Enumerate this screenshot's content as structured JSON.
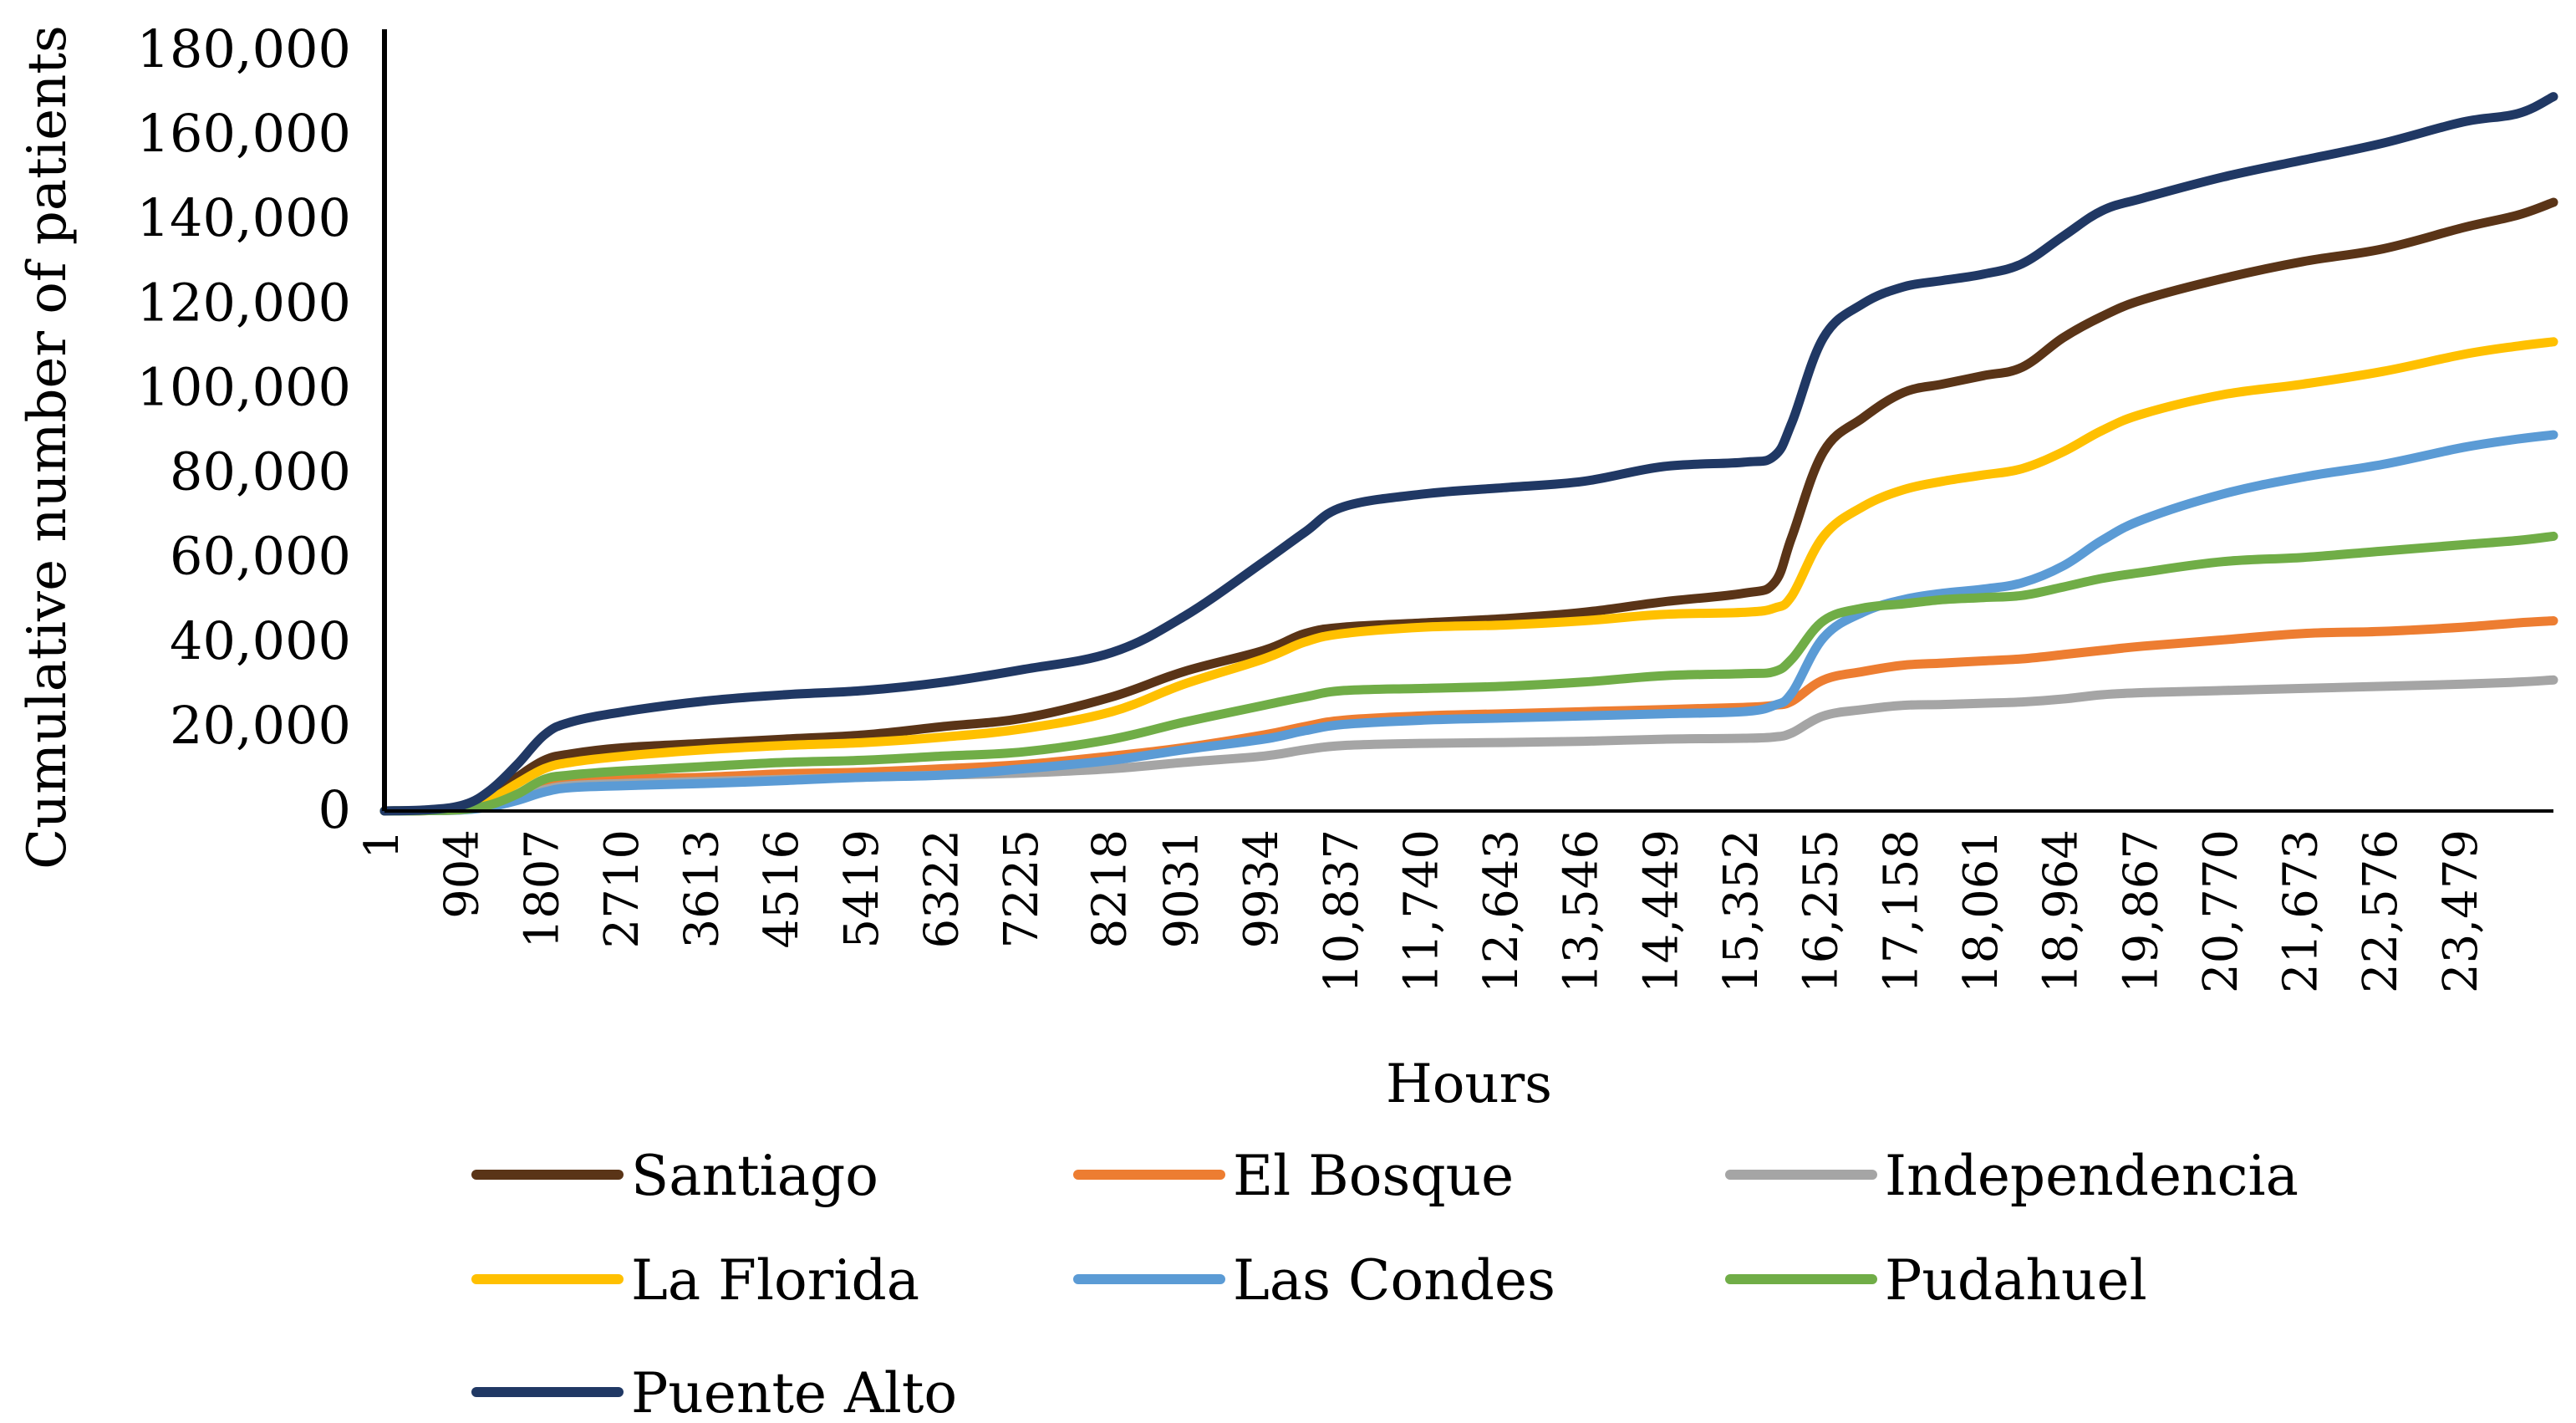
{
  "chart_data": {
    "type": "line",
    "title": "",
    "xlabel": "Hours",
    "ylabel": "Cumulative number of patients",
    "ylim": [
      0,
      180000
    ],
    "yticks": [
      0,
      20000,
      40000,
      60000,
      80000,
      100000,
      120000,
      140000,
      160000,
      180000
    ],
    "ytick_labels": [
      "0",
      "20,000",
      "40,000",
      "60,000",
      "80,000",
      "100,000",
      "120,000",
      "140,000",
      "160,000",
      "180,000"
    ],
    "xlim": [
      1,
      24500
    ],
    "xticks": [
      1,
      904,
      1807,
      2710,
      3613,
      4516,
      5419,
      6322,
      7225,
      8218,
      9031,
      9934,
      10837,
      11740,
      12643,
      13546,
      14449,
      15352,
      16255,
      17158,
      18061,
      18964,
      19867,
      20770,
      21673,
      22576,
      23479
    ],
    "xtick_labels": [
      "1",
      "904",
      "1807",
      "2710",
      "3613",
      "4516",
      "5419",
      "6322",
      "7225",
      "8218",
      "9031",
      "9934",
      "10,837",
      "11,740",
      "12,643",
      "13,546",
      "14,449",
      "15,352",
      "16,255",
      "17,158",
      "18,061",
      "18,964",
      "19,867",
      "20,770",
      "21,673",
      "22,576",
      "23,479"
    ],
    "x": [
      1,
      500,
      904,
      1200,
      1500,
      1807,
      2100,
      2710,
      3613,
      4516,
      5419,
      6322,
      7225,
      8218,
      9031,
      9934,
      10400,
      10837,
      11740,
      12643,
      13546,
      14449,
      15352,
      15700,
      15900,
      16255,
      16700,
      17158,
      17600,
      18061,
      18500,
      18964,
      19400,
      19867,
      20770,
      21673,
      22576,
      23479,
      24100,
      24500
    ],
    "series": [
      {
        "name": "Santiago",
        "color": "#5a3417",
        "values": [
          0,
          200,
          1000,
          3500,
          8000,
          12000,
          13500,
          15000,
          16000,
          17000,
          18000,
          20000,
          22000,
          27000,
          33000,
          38000,
          42000,
          43500,
          44500,
          45500,
          47000,
          49500,
          51500,
          54000,
          65000,
          85000,
          93000,
          99000,
          101000,
          103000,
          105000,
          112000,
          117000,
          121000,
          126000,
          130000,
          133000,
          138000,
          141000,
          144000
        ]
      },
      {
        "name": "El Bosque",
        "color": "#ed7d31",
        "values": [
          0,
          100,
          400,
          1500,
          3500,
          5500,
          6500,
          7500,
          8000,
          8800,
          9200,
          10000,
          11000,
          13000,
          15000,
          18000,
          20000,
          21500,
          22500,
          23000,
          23500,
          24000,
          24500,
          25000,
          26000,
          31000,
          33000,
          34500,
          35000,
          35500,
          36000,
          37000,
          38000,
          39000,
          40500,
          42000,
          42500,
          43500,
          44500,
          45000
        ]
      },
      {
        "name": "Independencia",
        "color": "#a5a5a5",
        "values": [
          0,
          100,
          300,
          1200,
          3000,
          5000,
          6000,
          6500,
          7000,
          7500,
          8000,
          8500,
          9000,
          10000,
          11500,
          13000,
          14500,
          15500,
          16000,
          16200,
          16500,
          17000,
          17200,
          17500,
          18500,
          22500,
          24000,
          25000,
          25200,
          25500,
          25800,
          26500,
          27500,
          28000,
          28500,
          29000,
          29500,
          30000,
          30500,
          31000
        ]
      },
      {
        "name": "La Florida",
        "color": "#ffc000",
        "values": [
          0,
          150,
          700,
          2800,
          6500,
          10000,
          11500,
          13000,
          14500,
          15500,
          16200,
          17500,
          19500,
          23500,
          30000,
          36000,
          40000,
          42000,
          43500,
          44000,
          45000,
          46500,
          47000,
          48000,
          51000,
          65000,
          72000,
          76000,
          78000,
          79500,
          81000,
          85000,
          90000,
          94000,
          98500,
          101000,
          104000,
          108000,
          110000,
          111000
        ]
      },
      {
        "name": "Las Condes",
        "color": "#5b9bd5",
        "values": [
          0,
          100,
          300,
          1000,
          2500,
          4500,
          5500,
          6000,
          6500,
          7200,
          8000,
          8500,
          10000,
          12000,
          14500,
          17000,
          19000,
          20500,
          21500,
          22000,
          22500,
          23000,
          23500,
          25000,
          28000,
          41000,
          47000,
          50000,
          51500,
          52500,
          54000,
          58000,
          64000,
          69000,
          75000,
          79000,
          82000,
          86000,
          88000,
          89000
        ]
      },
      {
        "name": "Pudahuel",
        "color": "#70ad47",
        "values": [
          0,
          100,
          400,
          1500,
          4000,
          7500,
          8500,
          9500,
          10500,
          11500,
          12000,
          13000,
          14000,
          17000,
          21000,
          25000,
          27000,
          28500,
          29000,
          29500,
          30500,
          32000,
          32500,
          33000,
          36000,
          45000,
          48000,
          49000,
          50000,
          50500,
          51000,
          53000,
          55000,
          56500,
          59000,
          60000,
          61500,
          63000,
          64000,
          65000
        ]
      },
      {
        "name": "Puente Alto",
        "color": "#203864",
        "values": [
          0,
          300,
          1500,
          5000,
          11000,
          18000,
          21000,
          23500,
          26000,
          27500,
          28500,
          30500,
          33500,
          37500,
          46000,
          59000,
          66000,
          72000,
          75000,
          76500,
          78000,
          81500,
          82500,
          84000,
          92000,
          112000,
          120000,
          124000,
          125500,
          127000,
          129500,
          136000,
          142000,
          145000,
          150000,
          154000,
          158000,
          163000,
          165000,
          169000
        ]
      }
    ],
    "legend_position": "bottom",
    "grid": false
  }
}
